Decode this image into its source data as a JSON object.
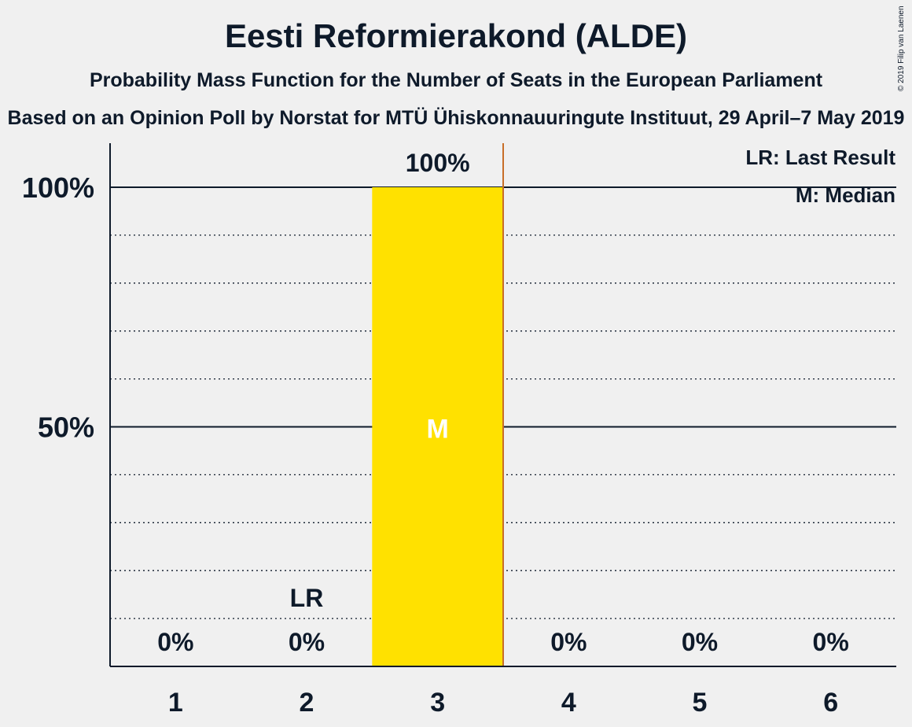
{
  "title": "Eesti Reformierakond (ALDE)",
  "subtitle": "Probability Mass Function for the Number of Seats in the European Parliament",
  "subtitle2": "Based on an Opinion Poll by Norstat for MTÜ Ühiskonnauuringute Instituut, 29 April–7 May 2019",
  "copyright": "© 2019 Filip van Laenen",
  "legend": {
    "lr": "LR: Last Result",
    "median": "M: Median"
  },
  "colors": {
    "bar": "#FFE100",
    "median_line": "#C86E28",
    "axis": "#0e1a2a",
    "background": "#f0f0f0"
  },
  "chart_data": {
    "type": "bar",
    "categories": [
      "1",
      "2",
      "3",
      "4",
      "5",
      "6"
    ],
    "values": [
      0,
      0,
      100,
      0,
      0,
      0
    ],
    "value_labels": [
      "0%",
      "0%",
      "100%",
      "0%",
      "0%",
      "0%"
    ],
    "ylim": [
      0,
      100
    ],
    "y_ticks": [
      {
        "value": 50,
        "label": "50%"
      },
      {
        "value": 100,
        "label": "100%"
      }
    ],
    "minor_gridlines": [
      10,
      20,
      30,
      40,
      60,
      70,
      80,
      90
    ],
    "last_result": {
      "category": "2",
      "label": "LR"
    },
    "median": {
      "category": "3",
      "label": "M"
    }
  }
}
